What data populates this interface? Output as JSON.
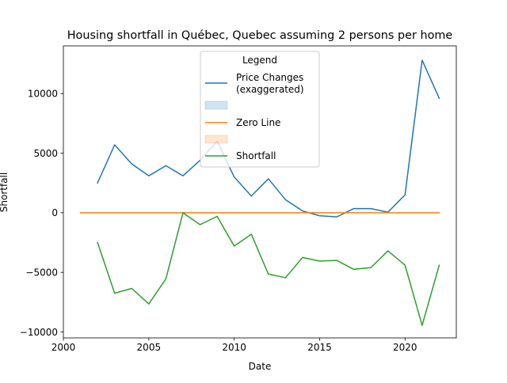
{
  "chart_data": {
    "type": "line",
    "title": "Housing shortfall in Québec, Quebec assuming 2 persons per home",
    "xlabel": "Date",
    "ylabel": "Shortfall",
    "xlim": [
      2000,
      2023
    ],
    "ylim": [
      -10500,
      14000
    ],
    "xticks": [
      2000,
      2005,
      2010,
      2015,
      2020
    ],
    "xtick_labels": [
      "2000",
      "2005",
      "2010",
      "2015",
      "2020"
    ],
    "yticks": [
      -10000,
      -5000,
      0,
      5000,
      10000
    ],
    "ytick_labels": [
      "−10000",
      "−5000",
      "0",
      "5000",
      "10000"
    ],
    "grid": false,
    "legend": {
      "title": "Legend",
      "placement": "top-center",
      "entries": [
        {
          "label_lines": [
            "Price Changes",
            "(exaggerated)"
          ],
          "kind": "line",
          "color": "#1f77b4"
        },
        {
          "label_lines": [
            ""
          ],
          "kind": "patch",
          "color": "#1f77b4"
        },
        {
          "label_lines": [
            "Zero Line"
          ],
          "kind": "line",
          "color": "#ff7f0e"
        },
        {
          "label_lines": [
            ""
          ],
          "kind": "patch",
          "color": "#ff7f0e"
        },
        {
          "label_lines": [
            "Shortfall"
          ],
          "kind": "line",
          "color": "#2ca02c"
        }
      ]
    },
    "series": [
      {
        "name": "Price Changes (exaggerated)",
        "color": "#1f77b4",
        "x": [
          2002,
          2003,
          2004,
          2005,
          2006,
          2007,
          2008,
          2009,
          2010,
          2011,
          2012,
          2013,
          2014,
          2015,
          2016,
          2017,
          2018,
          2019,
          2020,
          2021,
          2022
        ],
        "y": [
          2500,
          5700,
          4100,
          3100,
          3950,
          3100,
          4400,
          6000,
          3000,
          1400,
          2850,
          1100,
          150,
          -250,
          -350,
          350,
          350,
          50,
          1500,
          12800,
          9600
        ]
      },
      {
        "name": "Zero Line",
        "color": "#ff7f0e",
        "x": [
          2001,
          2022
        ],
        "y": [
          0,
          0
        ]
      },
      {
        "name": "Shortfall",
        "color": "#2ca02c",
        "x": [
          2002,
          2003,
          2004,
          2005,
          2006,
          2007,
          2008,
          2009,
          2010,
          2011,
          2012,
          2013,
          2014,
          2015,
          2016,
          2017,
          2018,
          2019,
          2020,
          2021,
          2022
        ],
        "y": [
          -2500,
          -6750,
          -6350,
          -7650,
          -5550,
          0,
          -1000,
          -300,
          -2800,
          -1800,
          -5150,
          -5450,
          -3750,
          -4050,
          -4000,
          -4750,
          -4600,
          -3200,
          -4400,
          -9450,
          -4400
        ]
      }
    ]
  }
}
